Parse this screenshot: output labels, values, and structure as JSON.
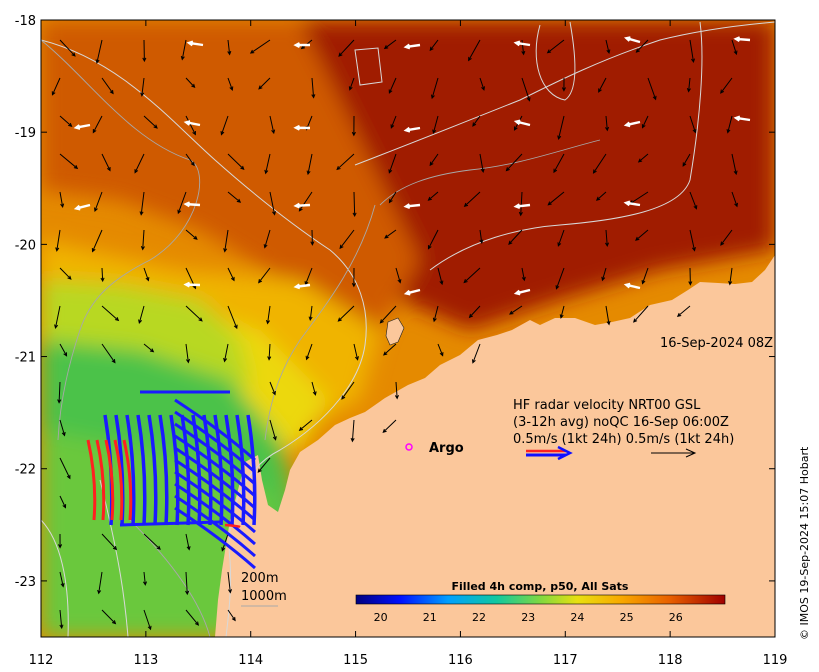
{
  "map": {
    "x_axis": {
      "min": 112,
      "max": 119,
      "ticks": [
        "112",
        "113",
        "114",
        "115",
        "116",
        "117",
        "118",
        "119"
      ]
    },
    "y_axis": {
      "min": -23.5,
      "max": -18,
      "ticks": [
        "-18",
        "-19",
        "-20",
        "-21",
        "-22",
        "-23"
      ]
    },
    "colors": {
      "land": "#fbc79b",
      "warm_deep": "#a01a00",
      "warm": "#cf5a00",
      "orange": "#e58a00",
      "yellow_orange": "#f0b400",
      "yellow": "#ecd810",
      "lime": "#b8d820",
      "green": "#4cc24a",
      "green_mid": "#6ac83c"
    }
  },
  "timestamp_label": "16-Sep-2024 08Z",
  "hf_radar": {
    "line1": "HF radar velocity  NRT00 GSL",
    "line2": "(3-12h avg) noQC 16-Sep 06:00Z",
    "line3": "0.5m/s (1kt 24h)   0.5m/s (1kt 24h)"
  },
  "argo_label": "Argo",
  "bathymetry": {
    "line1": "200m",
    "line2": "1000m"
  },
  "colorbar": {
    "title": "Filled 4h comp, p50, All Sats",
    "ticks": [
      "20",
      "21",
      "22",
      "23",
      "24",
      "25",
      "26"
    ],
    "min": 19.5,
    "max": 27
  },
  "credit": "© IMOS 19-Sep-2024 15:07 Hobart"
}
